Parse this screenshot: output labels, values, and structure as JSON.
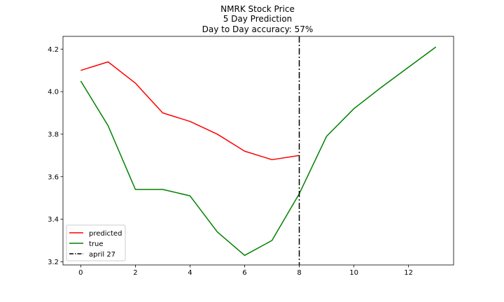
{
  "chart_data": {
    "type": "line",
    "title_lines": [
      "NMRK Stock Price",
      "5 Day Prediction",
      "Day to Day accuracy: 57%"
    ],
    "xlabel": "",
    "ylabel": "",
    "xlim": [
      -0.65,
      13.65
    ],
    "ylim": [
      3.185,
      4.26
    ],
    "xticks": [
      0,
      2,
      4,
      6,
      8,
      10,
      12
    ],
    "yticks": [
      3.2,
      3.4,
      3.6,
      3.8,
      4.0,
      4.2
    ],
    "grid": false,
    "legend_position": "lower-left",
    "series": [
      {
        "name": "predicted",
        "color": "#ff0000",
        "style": "solid",
        "x": [
          0,
          1,
          2,
          3,
          4,
          5,
          6,
          7,
          8
        ],
        "values": [
          4.1,
          4.14,
          4.04,
          3.9,
          3.86,
          3.8,
          3.72,
          3.68,
          3.7
        ]
      },
      {
        "name": "true",
        "color": "#008000",
        "style": "solid",
        "x": [
          0,
          1,
          2,
          3,
          4,
          5,
          6,
          7,
          8,
          9,
          10,
          11,
          12,
          13
        ],
        "values": [
          4.05,
          3.84,
          3.54,
          3.54,
          3.51,
          3.34,
          3.23,
          3.3,
          3.52,
          3.79,
          3.92,
          4.02,
          4.115,
          4.21
        ]
      }
    ],
    "annotations": [
      {
        "name": "april 27",
        "type": "vline",
        "x": 8,
        "color": "#000000",
        "style": "dashdot"
      }
    ]
  }
}
